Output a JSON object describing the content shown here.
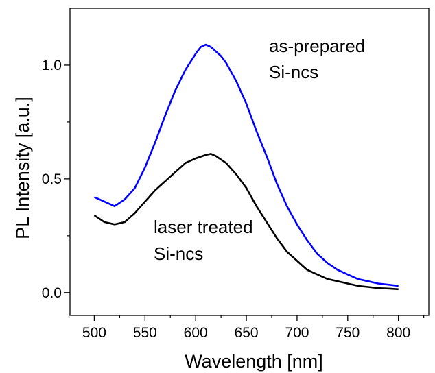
{
  "chart_data": {
    "type": "line",
    "title": "",
    "xlabel": "Wavelength [nm]",
    "ylabel": "PL Intensity [a.u.]",
    "xlim": [
      476,
      830
    ],
    "ylim": [
      -0.1,
      1.25
    ],
    "x_ticks": [
      500,
      550,
      600,
      650,
      700,
      750,
      800
    ],
    "x_tick_labels": [
      "500",
      "550",
      "600",
      "650",
      "700",
      "750",
      "800"
    ],
    "x_minor_ticks": [
      475,
      525,
      575,
      625,
      675,
      725,
      775,
      825
    ],
    "y_ticks": [
      0.0,
      0.5,
      1.0
    ],
    "y_tick_labels": [
      "0.0",
      "0.5",
      "1.0"
    ],
    "y_minor_ticks": [
      0.25,
      0.75
    ],
    "grid": false,
    "legend": "none",
    "annotations": [
      {
        "lines": [
          "as-prepared",
          "Si-ncs"
        ],
        "anchor": "upper-right, beside the blue curve peak"
      },
      {
        "lines": [
          "laser treated",
          "Si-ncs"
        ],
        "anchor": "center, below the black curve"
      }
    ],
    "series": [
      {
        "color": "#0000ff",
        "x": [
          500,
          510,
          520,
          530,
          540,
          550,
          560,
          570,
          580,
          590,
          600,
          605,
          610,
          615,
          620,
          625,
          630,
          640,
          650,
          660,
          670,
          680,
          690,
          700,
          710,
          720,
          730,
          740,
          750,
          760,
          770,
          780,
          790,
          800
        ],
        "y": [
          0.42,
          0.4,
          0.38,
          0.41,
          0.46,
          0.55,
          0.66,
          0.78,
          0.89,
          0.98,
          1.05,
          1.08,
          1.09,
          1.08,
          1.06,
          1.04,
          1.01,
          0.93,
          0.83,
          0.71,
          0.6,
          0.48,
          0.38,
          0.3,
          0.23,
          0.17,
          0.13,
          0.1,
          0.08,
          0.06,
          0.05,
          0.04,
          0.035,
          0.03
        ]
      },
      {
        "color": "#000000",
        "x": [
          500,
          510,
          520,
          530,
          540,
          550,
          560,
          570,
          580,
          590,
          600,
          610,
          615,
          620,
          630,
          640,
          650,
          660,
          670,
          680,
          690,
          700,
          710,
          720,
          730,
          740,
          750,
          760,
          770,
          780,
          790,
          800
        ],
        "y": [
          0.34,
          0.31,
          0.3,
          0.31,
          0.35,
          0.4,
          0.45,
          0.49,
          0.53,
          0.57,
          0.59,
          0.605,
          0.61,
          0.6,
          0.57,
          0.52,
          0.46,
          0.38,
          0.31,
          0.24,
          0.18,
          0.14,
          0.1,
          0.08,
          0.06,
          0.05,
          0.04,
          0.03,
          0.025,
          0.02,
          0.018,
          0.015
        ]
      }
    ]
  }
}
